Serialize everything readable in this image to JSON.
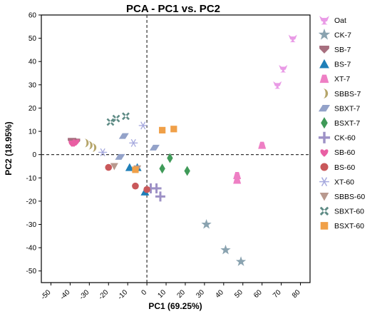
{
  "chart_data": {
    "type": "scatter",
    "title": "PCA - PC1 vs. PC2",
    "xlabel": "PC1 (69.25%)",
    "ylabel": "PC2 (18.95%)",
    "xlim": [
      -55,
      85
    ],
    "ylim": [
      -55,
      60
    ],
    "xticks": [
      -50,
      -40,
      -30,
      -20,
      -10,
      0,
      10,
      20,
      30,
      40,
      50,
      60,
      70,
      80
    ],
    "yticks": [
      -50,
      -40,
      -30,
      -20,
      -10,
      0,
      10,
      20,
      30,
      40,
      50,
      60
    ],
    "zero_lines": true,
    "grid": false,
    "legend_position": "right",
    "series": [
      {
        "name": "Oat",
        "marker": "cup",
        "color": "#e99ae6",
        "points": [
          [
            76,
            50
          ],
          [
            71,
            37
          ],
          [
            68,
            30
          ]
        ]
      },
      {
        "name": "CK-7",
        "marker": "star",
        "color": "#8aa3b0",
        "points": [
          [
            31,
            -30
          ],
          [
            41,
            -41
          ],
          [
            49,
            -46
          ]
        ]
      },
      {
        "name": "SB-7",
        "marker": "shield",
        "color": "#a76f7f",
        "points": [
          [
            -37,
            5.5
          ],
          [
            -38,
            5
          ],
          [
            -39,
            5.8
          ]
        ]
      },
      {
        "name": "BS-7",
        "marker": "triangle",
        "color": "#1f7fb8",
        "points": [
          [
            -9,
            -5.5
          ],
          [
            -5,
            -5.5
          ],
          [
            -1,
            -16
          ]
        ]
      },
      {
        "name": "XT-7",
        "marker": "trapezoid",
        "color": "#ee7fc4",
        "points": [
          [
            60,
            4
          ],
          [
            47,
            -9
          ],
          [
            47,
            -11
          ]
        ]
      },
      {
        "name": "SBBS-7",
        "marker": "halfmoon",
        "color": "#b5a56a",
        "points": [
          [
            -32,
            5
          ],
          [
            -30,
            4
          ],
          [
            -28,
            3
          ]
        ]
      },
      {
        "name": "SBXT-7",
        "marker": "parallelogram",
        "color": "#93a2c9",
        "points": [
          [
            -12,
            8
          ],
          [
            -14,
            -1
          ],
          [
            4,
            3
          ]
        ]
      },
      {
        "name": "BSXT-7",
        "marker": "diamond",
        "color": "#3f9a58",
        "points": [
          [
            12,
            -1.5
          ],
          [
            8,
            -6
          ],
          [
            21,
            -7
          ]
        ]
      },
      {
        "name": "CK-60",
        "marker": "plus",
        "color": "#9d91c6",
        "points": [
          [
            2,
            -14.5
          ],
          [
            5,
            -14.5
          ],
          [
            7,
            -18
          ]
        ]
      },
      {
        "name": "SB-60",
        "marker": "heart",
        "color": "#e95fa3",
        "points": [
          [
            -39,
            5
          ],
          [
            -37,
            5.5
          ],
          [
            -38,
            5
          ]
        ]
      },
      {
        "name": "BS-60",
        "marker": "circle",
        "color": "#c9585a",
        "points": [
          [
            -20,
            -5.5
          ],
          [
            -6,
            -13.5
          ],
          [
            0,
            -15
          ]
        ]
      },
      {
        "name": "XT-60",
        "marker": "asterisk",
        "color": "#a6a9de",
        "points": [
          [
            -2,
            12.5
          ],
          [
            -7,
            5
          ],
          [
            -23,
            1
          ]
        ]
      },
      {
        "name": "SBBS-60",
        "marker": "triangle-down",
        "color": "#b8998e",
        "points": [
          [
            -17,
            -5
          ],
          [
            -5,
            -6
          ]
        ]
      },
      {
        "name": "SBXT-60",
        "marker": "cross",
        "color": "#5d8a84",
        "points": [
          [
            -19,
            14
          ],
          [
            -16,
            15.5
          ],
          [
            -11,
            16.5
          ]
        ]
      },
      {
        "name": "BSXT-60",
        "marker": "square",
        "color": "#f0a048",
        "points": [
          [
            8,
            10.5
          ],
          [
            14,
            11
          ],
          [
            -6,
            -6.5
          ]
        ]
      }
    ]
  }
}
